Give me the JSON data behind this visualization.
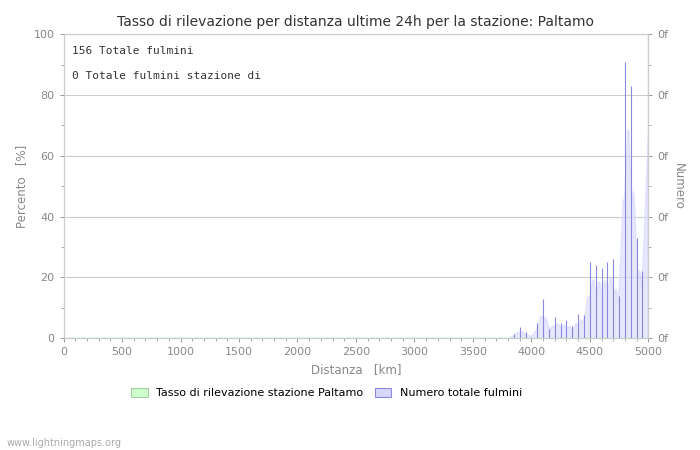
{
  "title": "Tasso di rilevazione per distanza ultime 24h per la stazione: Paltamo",
  "xlabel": "Distanza   [km]",
  "ylabel_left": "Percento   [%]",
  "ylabel_right": "Numero",
  "annotation_line1": "156 Totale fulmini",
  "annotation_line2": "0 Totale fulmini stazione di",
  "xlim": [
    0,
    5000
  ],
  "ylim": [
    0,
    100
  ],
  "xticks": [
    0,
    500,
    1000,
    1500,
    2000,
    2500,
    3000,
    3500,
    4000,
    4500,
    5000
  ],
  "yticks_left": [
    0,
    20,
    40,
    60,
    80,
    100
  ],
  "right_tick_positions": [
    0,
    20,
    40,
    60,
    80,
    100
  ],
  "right_tick_labels": [
    "0f",
    "0f",
    "0f",
    "0f",
    "0f",
    "0f"
  ],
  "legend_label_green": "Tasso di rilevazione stazione Paltamo",
  "legend_label_blue": "Numero totale fulmini",
  "watermark": "www.lightningmaps.org",
  "bg_color": "#ffffff",
  "plot_bg_color": "#ffffff",
  "grid_color": "#cccccc",
  "bar_fill_color": "#d8d8ff",
  "bar_line_color": "#8888dd",
  "green_fill_color": "#ccffcc",
  "label_color": "#888888",
  "title_color": "#333333",
  "spike_data": {
    "distances": [
      3850,
      3900,
      3950,
      4000,
      4050,
      4100,
      4150,
      4200,
      4250,
      4300,
      4350,
      4400,
      4450,
      4500,
      4550,
      4600,
      4650,
      4700,
      4750,
      4800,
      4850,
      4900,
      4950,
      5000
    ],
    "values": [
      1.5,
      3.5,
      2.0,
      0.5,
      5.0,
      13.0,
      3.0,
      7.0,
      5.0,
      6.0,
      4.0,
      8.0,
      7.5,
      25.0,
      24.0,
      23.0,
      25.0,
      26.0,
      14.0,
      91.0,
      83.0,
      33.0,
      22.0,
      100.0
    ]
  }
}
